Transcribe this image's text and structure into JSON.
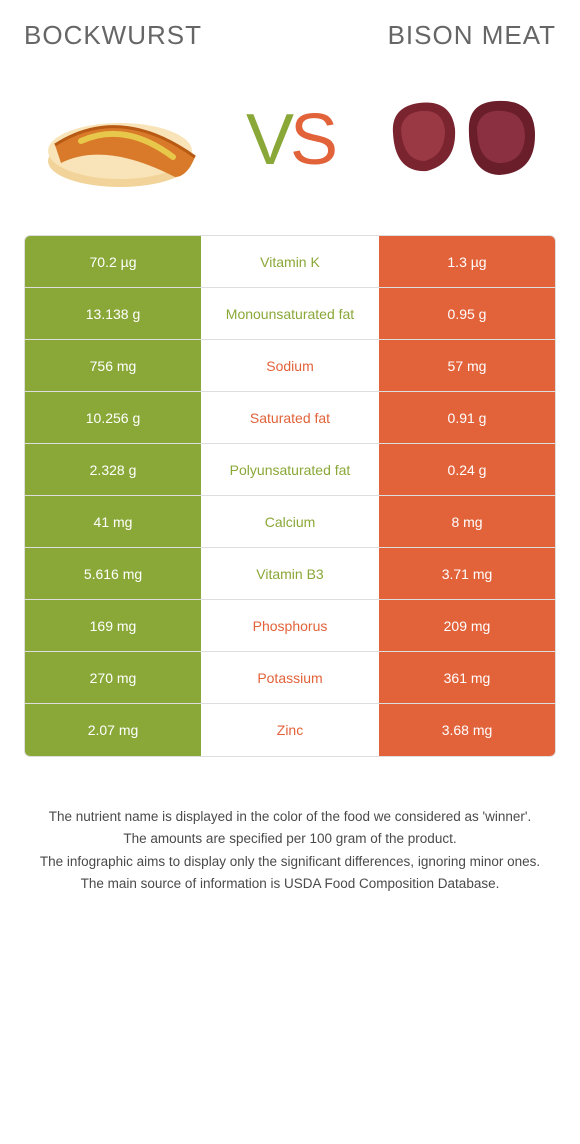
{
  "colors": {
    "left": "#8aa838",
    "right": "#e2623a",
    "title": "#666666",
    "footnote": "#4a4a4a",
    "border": "#dedede"
  },
  "header": {
    "left_title": "BOCKWURST",
    "right_title": "BISON MEAT",
    "vs_v": "V",
    "vs_s": "S"
  },
  "rows": [
    {
      "left": "70.2 µg",
      "mid": "Vitamin K",
      "right": "1.3 µg",
      "winner": "left"
    },
    {
      "left": "13.138 g",
      "mid": "Monounsaturated fat",
      "right": "0.95 g",
      "winner": "left"
    },
    {
      "left": "756 mg",
      "mid": "Sodium",
      "right": "57 mg",
      "winner": "right"
    },
    {
      "left": "10.256 g",
      "mid": "Saturated fat",
      "right": "0.91 g",
      "winner": "right"
    },
    {
      "left": "2.328 g",
      "mid": "Polyunsaturated fat",
      "right": "0.24 g",
      "winner": "left"
    },
    {
      "left": "41 mg",
      "mid": "Calcium",
      "right": "8 mg",
      "winner": "left"
    },
    {
      "left": "5.616 mg",
      "mid": "Vitamin B3",
      "right": "3.71 mg",
      "winner": "left"
    },
    {
      "left": "169 mg",
      "mid": "Phosphorus",
      "right": "209 mg",
      "winner": "right"
    },
    {
      "left": "270 mg",
      "mid": "Potassium",
      "right": "361 mg",
      "winner": "right"
    },
    {
      "left": "2.07 mg",
      "mid": "Zinc",
      "right": "3.68 mg",
      "winner": "right"
    }
  ],
  "footnotes": [
    "The nutrient name is displayed in the color of the food we considered as 'winner'.",
    "The amounts are specified per 100 gram of the product.",
    "The infographic aims to display only the significant differences, ignoring minor ones.",
    "The main source of information is USDA Food Composition Database."
  ]
}
